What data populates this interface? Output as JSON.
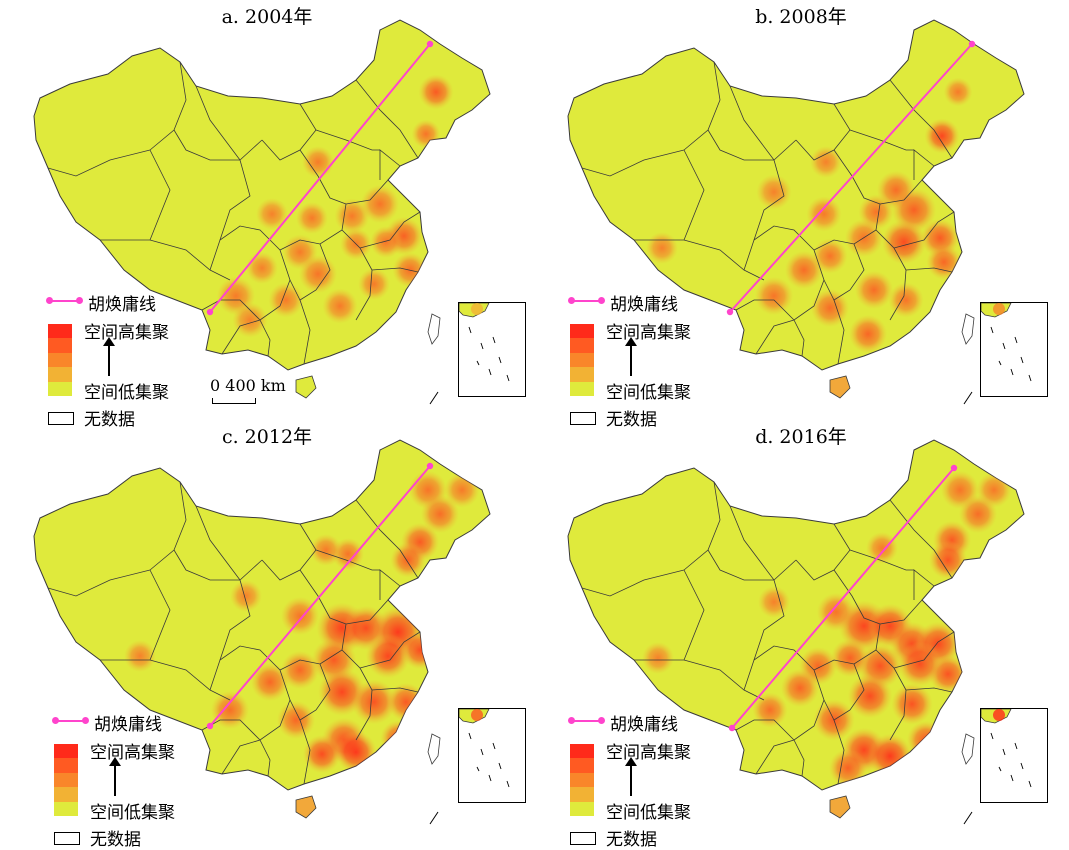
{
  "panels": [
    {
      "title": "a. 2004年"
    },
    {
      "title": "b. 2008年"
    },
    {
      "title": "c. 2012年"
    },
    {
      "title": "d. 2016年"
    }
  ],
  "legend": {
    "hu_line_label": "胡焕庸线",
    "high_label": "空间高集聚",
    "low_label": "空间低集聚",
    "no_data_label": "无数据",
    "ramp_colors": [
      "#ff2a1a",
      "#ff5a22",
      "#f9862a",
      "#f2b234",
      "#dfea3c"
    ]
  },
  "scale_bar": {
    "label": "0 400 km"
  },
  "colors": {
    "base_fill": "#dfea3c",
    "boundary": "#3a3a3a",
    "hu_line": "#ff44cc",
    "hotspot_low": "#f2b234",
    "hotspot_high": "#ff2a1a"
  }
}
